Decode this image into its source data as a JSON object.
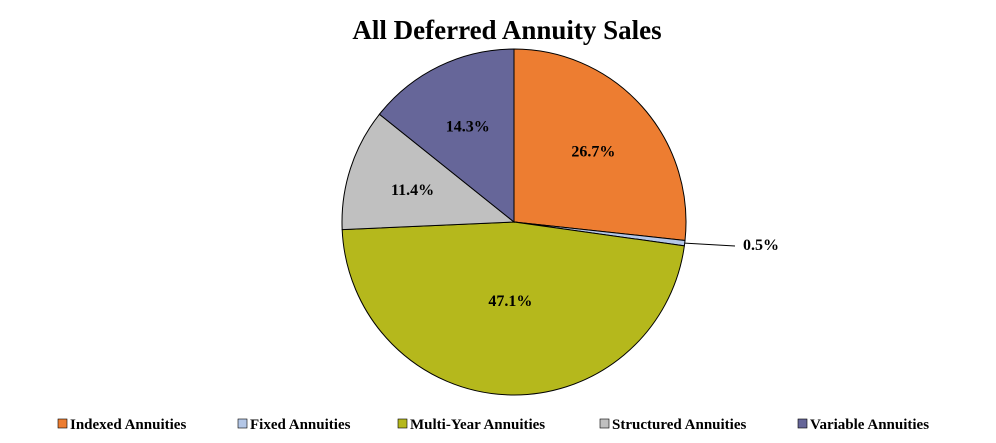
{
  "chart_data": {
    "type": "pie",
    "title": "All Deferred Annuity Sales",
    "categories": [
      "Indexed Annuities",
      "Fixed Annuities",
      "Multi-Year Annuities",
      "Structured Annuities",
      "Variable Annuities"
    ],
    "values": [
      26.7,
      0.5,
      47.1,
      11.4,
      14.3
    ],
    "labels": [
      "26.7%",
      "0.5%",
      "47.1%",
      "11.4%",
      "14.3%"
    ],
    "colors": [
      "#ED7D31",
      "#B4C7E7",
      "#B5B81C",
      "#C0C0C0",
      "#666699"
    ],
    "start_angle_deg": 0,
    "direction": "clockwise",
    "legend_position": "bottom"
  }
}
